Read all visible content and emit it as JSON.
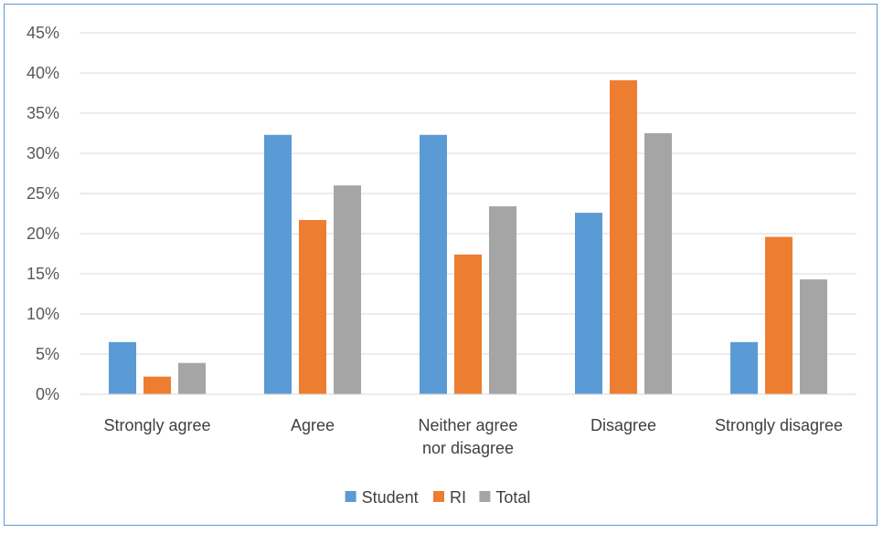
{
  "chart_data": {
    "type": "bar",
    "categories": [
      [
        "Strongly agree"
      ],
      [
        "Agree"
      ],
      [
        "Neither agree",
        "nor disagree"
      ],
      [
        "Disagree"
      ],
      [
        "Strongly disagree"
      ]
    ],
    "series": [
      {
        "name": "Student",
        "color": "#5b9bd5",
        "values": [
          6.5,
          32.3,
          32.3,
          22.6,
          6.5
        ]
      },
      {
        "name": "RI",
        "color": "#ed7d31",
        "values": [
          2.2,
          21.7,
          17.4,
          39.1,
          19.6
        ]
      },
      {
        "name": "Total",
        "color": "#a5a5a5",
        "values": [
          3.9,
          26.0,
          23.4,
          32.5,
          14.3
        ]
      }
    ],
    "ylim": [
      0,
      45
    ],
    "ytick_step": 5,
    "ytick_suffix": "%",
    "grid": true,
    "legend_position": "bottom",
    "title": "",
    "xlabel": "",
    "ylabel": ""
  }
}
